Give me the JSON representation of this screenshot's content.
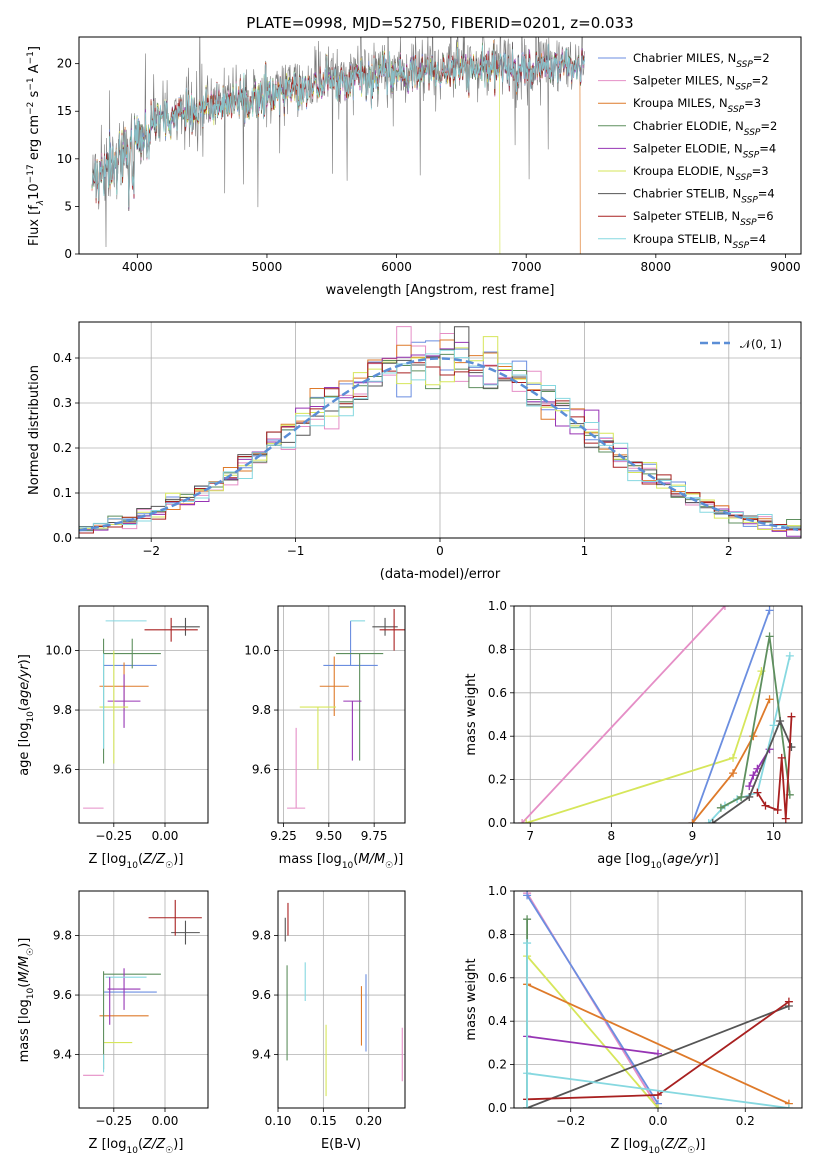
{
  "series_styles": [
    {
      "name": "Chabrier MILES",
      "nssp": "2",
      "color": "#6b8ee0"
    },
    {
      "name": "Salpeter MILES",
      "nssp": "2",
      "color": "#e58ec6"
    },
    {
      "name": "Kroupa MILES",
      "nssp": "3",
      "color": "#de7a2a"
    },
    {
      "name": "Chabrier ELODIE",
      "nssp": "2",
      "color": "#5e8f5e"
    },
    {
      "name": "Salpeter ELODIE",
      "nssp": "4",
      "color": "#9634b4"
    },
    {
      "name": "Kroupa ELODIE",
      "nssp": "3",
      "color": "#d6e65a"
    },
    {
      "name": "Chabrier STELIB",
      "nssp": "4",
      "color": "#555555"
    },
    {
      "name": "Salpeter STELIB",
      "nssp": "6",
      "color": "#a82020"
    },
    {
      "name": "Kroupa STELIB",
      "nssp": "4",
      "color": "#86d8e0"
    }
  ],
  "chart_data": [
    {
      "id": "spectrum",
      "type": "line",
      "title": "PLATE=0998, MJD=52750, FIBERID=0201, z=0.033",
      "xlabel": "wavelength [Angstrom, rest frame]",
      "ylabel_parts": [
        "Flux [f",
        "λ",
        "10",
        "−17",
        " erg cm",
        "−2",
        " s",
        "−1",
        " A",
        "−1",
        "]"
      ],
      "xlim": [
        3550,
        9120
      ],
      "ylim": [
        0,
        22.8
      ],
      "xticks": [
        4000,
        5000,
        6000,
        7000,
        8000,
        9000
      ],
      "yticks": [
        0,
        5,
        10,
        15,
        20
      ],
      "continuum": {
        "x": [
          3650,
          4000,
          4500,
          5000,
          5500,
          6000,
          6500,
          7000,
          7500
        ],
        "y": [
          9.5,
          14.0,
          15.5,
          17.0,
          18.5,
          19.3,
          19.8,
          20.0,
          20.3
        ]
      },
      "observed_range": [
        3650,
        7450
      ],
      "dropouts": [
        {
          "series": 5,
          "x": 6800
        },
        {
          "series": 2,
          "x": 7420
        }
      ],
      "legend": {
        "placement": "top-right"
      }
    },
    {
      "id": "residual-hist",
      "type": "histogram",
      "xlabel": "(data-model)/error",
      "ylabel": "Normed distribution",
      "xlim": [
        -2.5,
        2.5
      ],
      "ylim": [
        0,
        0.48
      ],
      "xticks": [
        -2,
        -1,
        0,
        1,
        2
      ],
      "xtick_labels": [
        "−2",
        "−1",
        "0",
        "1",
        "2"
      ],
      "yticks": [
        0.0,
        0.1,
        0.2,
        0.3,
        0.4
      ],
      "ytick_labels": [
        "0.0",
        "0.1",
        "0.2",
        "0.3",
        "0.4"
      ],
      "bin_width": 0.1,
      "reference": {
        "label": "𝒩(0, 1)",
        "mu": 0,
        "sigma": 1,
        "color": "#5b8ed6"
      },
      "legend": {
        "placement": "top-right"
      }
    },
    {
      "id": "age-vs-z",
      "type": "scatter",
      "xlabel": "Z [log10(Z/Z☉)]",
      "xlabel_parts": [
        "Z [log",
        "10",
        "(Z/Z",
        "☉",
        ")]"
      ],
      "ylabel_parts": [
        "age  [log",
        "10",
        "(age/yr)]"
      ],
      "xlim": [
        -0.42,
        0.21
      ],
      "ylim": [
        9.42,
        10.15
      ],
      "xticks": [
        -0.25,
        0.0
      ],
      "xtick_labels": [
        "−0.25",
        "0.00"
      ],
      "yticks": [
        9.6,
        9.8,
        10.0
      ],
      "yticks_labels": [
        "9.6",
        "9.8",
        "10.0"
      ],
      "points": [
        {
          "s": 0,
          "x": -0.17,
          "y": 9.95,
          "xerr": [
            0.13,
            0.13
          ],
          "yerr": [
            0.0,
            0.0
          ]
        },
        {
          "s": 1,
          "x": -0.35,
          "y": 9.47,
          "xerr": [
            0.05,
            0.05
          ],
          "yerr": [
            0.0,
            0.0
          ]
        },
        {
          "s": 2,
          "x": -0.2,
          "y": 9.88,
          "xerr": [
            0.12,
            0.12
          ],
          "yerr": [
            0.08,
            0.08
          ]
        },
        {
          "s": 3,
          "x": -0.16,
          "y": 9.99,
          "xerr": [
            0.14,
            0.14
          ],
          "yerr": [
            0.05,
            0.05
          ]
        },
        {
          "s": 4,
          "x": -0.2,
          "y": 9.83,
          "xerr": [
            0.08,
            0.08
          ],
          "yerr": [
            0.09,
            0.09
          ]
        },
        {
          "s": 5,
          "x": -0.25,
          "y": 9.81,
          "xerr": [
            0.07,
            0.07
          ],
          "yerr": [
            0.19,
            0.19
          ]
        },
        {
          "s": 6,
          "x": 0.1,
          "y": 10.08,
          "xerr": [
            0.07,
            0.07
          ],
          "yerr": [
            0.03,
            0.03
          ]
        },
        {
          "s": 7,
          "x": 0.03,
          "y": 10.07,
          "xerr": [
            0.13,
            0.13
          ],
          "yerr": [
            0.04,
            0.04
          ]
        },
        {
          "s": 8,
          "x": -0.19,
          "y": 10.1,
          "xerr": [
            0.1,
            0.1
          ],
          "yerr": [
            0.0,
            0.0
          ]
        },
        {
          "s": 3,
          "x": -0.3,
          "y": 9.83,
          "xerr": [
            0.0,
            0.0
          ],
          "yerr": [
            0.21,
            0.21
          ]
        },
        {
          "s": 8,
          "x": -0.3,
          "y": 9.83,
          "xerr": [
            0.0,
            0.0
          ],
          "yerr": [
            0.16,
            0.16
          ]
        }
      ]
    },
    {
      "id": "age-vs-mass",
      "type": "scatter",
      "xlabel_parts": [
        "mass [log",
        "10",
        "(M/M",
        "☉",
        ")]"
      ],
      "xlim": [
        9.22,
        9.92
      ],
      "ylim": [
        9.42,
        10.15
      ],
      "xticks": [
        9.25,
        9.5,
        9.75
      ],
      "xtick_labels": [
        "9.25",
        "9.50",
        "9.75"
      ],
      "yticks": [
        9.6,
        9.8,
        10.0
      ],
      "yticks_labels": [
        "9.6",
        "9.8",
        "10.0"
      ],
      "points": [
        {
          "s": 0,
          "x": 9.62,
          "y": 9.95,
          "xerr": [
            0.15,
            0.15
          ],
          "yerr": [
            0.0,
            0.15
          ]
        },
        {
          "s": 1,
          "x": 9.32,
          "y": 9.47,
          "xerr": [
            0.05,
            0.05
          ],
          "yerr": [
            0.0,
            0.27
          ]
        },
        {
          "s": 2,
          "x": 9.53,
          "y": 9.88,
          "xerr": [
            0.08,
            0.08
          ],
          "yerr": [
            0.1,
            0.1
          ]
        },
        {
          "s": 3,
          "x": 9.67,
          "y": 9.99,
          "xerr": [
            0.13,
            0.13
          ],
          "yerr": [
            0.36,
            0.0
          ]
        },
        {
          "s": 4,
          "x": 9.63,
          "y": 9.83,
          "xerr": [
            0.05,
            0.05
          ],
          "yerr": [
            0.2,
            0.0
          ]
        },
        {
          "s": 5,
          "x": 9.44,
          "y": 9.81,
          "xerr": [
            0.1,
            0.1
          ],
          "yerr": [
            0.21,
            0.0
          ]
        },
        {
          "s": 6,
          "x": 9.81,
          "y": 10.08,
          "xerr": [
            0.07,
            0.07
          ],
          "yerr": [
            0.03,
            0.03
          ]
        },
        {
          "s": 7,
          "x": 9.86,
          "y": 10.07,
          "xerr": [
            0.08,
            0.08
          ],
          "yerr": [
            0.07,
            0.07
          ]
        },
        {
          "s": 8,
          "x": 9.66,
          "y": 10.1,
          "xerr": [
            0.04,
            0.04
          ],
          "yerr": [
            0.0,
            0.0
          ]
        }
      ]
    },
    {
      "id": "weight-vs-age",
      "type": "line",
      "xlabel_parts": [
        "age  [log",
        "10",
        "(age/yr)]"
      ],
      "ylabel": "mass weight",
      "xlim": [
        6.8,
        10.35
      ],
      "ylim": [
        0.0,
        1.0
      ],
      "xticks": [
        7,
        8,
        9,
        10
      ],
      "yticks": [
        0.0,
        0.2,
        0.4,
        0.6,
        0.8,
        1.0
      ],
      "ytick_labels": [
        "0.0",
        "0.2",
        "0.4",
        "0.6",
        "0.8",
        "1.0"
      ],
      "lines": [
        {
          "s": 1,
          "x": [
            6.9,
            9.4
          ],
          "y": [
            0.0,
            1.0
          ]
        },
        {
          "s": 5,
          "x": [
            6.95,
            9.5,
            9.85
          ],
          "y": [
            0.0,
            0.3,
            0.7
          ]
        },
        {
          "s": 0,
          "x": [
            9.0,
            9.95
          ],
          "y": [
            0.0,
            0.98
          ]
        },
        {
          "s": 2,
          "x": [
            9.0,
            9.5,
            9.75,
            9.95
          ],
          "y": [
            0.0,
            0.23,
            0.4,
            0.57
          ]
        },
        {
          "s": 4,
          "x": [
            9.7,
            9.75,
            9.8,
            9.95
          ],
          "y": [
            0.17,
            0.22,
            0.25,
            0.34
          ]
        },
        {
          "s": 8,
          "x": [
            9.2,
            9.4,
            9.55,
            9.8,
            10.0,
            10.2
          ],
          "y": [
            0.0,
            0.08,
            0.11,
            0.14,
            0.45,
            0.77
          ]
        },
        {
          "s": 3,
          "x": [
            9.35,
            9.6,
            9.95,
            10.2
          ],
          "y": [
            0.07,
            0.12,
            0.86,
            0.13
          ]
        },
        {
          "s": 6,
          "x": [
            9.25,
            9.7,
            10.08,
            10.22
          ],
          "y": [
            0.0,
            0.12,
            0.47,
            0.35
          ]
        },
        {
          "s": 7,
          "x": [
            9.8,
            9.9,
            10.05,
            10.1,
            10.15,
            10.22
          ],
          "y": [
            0.14,
            0.08,
            0.06,
            0.3,
            0.02,
            0.49
          ]
        }
      ]
    },
    {
      "id": "mass-vs-z",
      "type": "scatter",
      "xlabel_parts": [
        "Z [log",
        "10",
        "(Z/Z",
        "☉",
        ")]"
      ],
      "ylabel_parts": [
        "mass [log",
        "10",
        "(M/M",
        "☉",
        ")]"
      ],
      "xlim": [
        -0.42,
        0.21
      ],
      "ylim": [
        9.22,
        9.95
      ],
      "xticks": [
        -0.25,
        0.0
      ],
      "xtick_labels": [
        "−0.25",
        "0.00"
      ],
      "yticks": [
        9.4,
        9.6,
        9.8
      ],
      "yticks_labels": [
        "9.4",
        "9.6",
        "9.8"
      ],
      "points": [
        {
          "s": 0,
          "x": -0.17,
          "y": 9.61,
          "xerr": [
            0.13,
            0.13
          ],
          "yerr": [
            0.0,
            0.0
          ]
        },
        {
          "s": 1,
          "x": -0.35,
          "y": 9.33,
          "xerr": [
            0.05,
            0.05
          ],
          "yerr": [
            0.0,
            0.0
          ]
        },
        {
          "s": 2,
          "x": -0.2,
          "y": 9.53,
          "xerr": [
            0.12,
            0.12
          ],
          "yerr": [
            0.0,
            0.0
          ]
        },
        {
          "s": 3,
          "x": -0.16,
          "y": 9.67,
          "xerr": [
            0.14,
            0.14
          ],
          "yerr": [
            0.0,
            0.0
          ]
        },
        {
          "s": 4,
          "x": -0.2,
          "y": 9.62,
          "xerr": [
            0.08,
            0.08
          ],
          "yerr": [
            0.07,
            0.07
          ]
        },
        {
          "s": 5,
          "x": -0.23,
          "y": 9.44,
          "xerr": [
            0.07,
            0.07
          ],
          "yerr": [
            0.0,
            0.0
          ]
        },
        {
          "s": 6,
          "x": 0.1,
          "y": 9.81,
          "xerr": [
            0.07,
            0.07
          ],
          "yerr": [
            0.04,
            0.04
          ]
        },
        {
          "s": 7,
          "x": 0.05,
          "y": 9.86,
          "xerr": [
            0.13,
            0.13
          ],
          "yerr": [
            0.06,
            0.06
          ]
        },
        {
          "s": 8,
          "x": -0.19,
          "y": 9.66,
          "xerr": [
            0.1,
            0.1
          ],
          "yerr": [
            0.0,
            0.0
          ]
        },
        {
          "s": 3,
          "x": -0.3,
          "y": 9.6,
          "xerr": [
            0.0,
            0.0
          ],
          "yerr": [
            0.25,
            0.08
          ]
        },
        {
          "s": 4,
          "x": -0.27,
          "y": 9.6,
          "xerr": [
            0.0,
            0.0
          ],
          "yerr": [
            0.1,
            0.06
          ]
        },
        {
          "s": 8,
          "x": -0.3,
          "y": 9.4,
          "xerr": [
            0.0,
            0.0
          ],
          "yerr": [
            0.06,
            0.0
          ]
        }
      ]
    },
    {
      "id": "mass-vs-ebv",
      "type": "scatter",
      "xlabel": "E(B-V)",
      "xlim": [
        0.1,
        0.24
      ],
      "ylim": [
        9.22,
        9.95
      ],
      "xticks": [
        0.1,
        0.15,
        0.2
      ],
      "xtick_labels": [
        "0.10",
        "0.15",
        "0.20"
      ],
      "yticks": [
        9.4,
        9.6,
        9.8
      ],
      "yticks_labels": [
        "9.4",
        "9.6",
        "9.8"
      ],
      "points": [
        {
          "s": 0,
          "x": 0.197,
          "y": 9.55,
          "xerr": [
            0.0,
            0.0
          ],
          "yerr": [
            0.14,
            0.12
          ]
        },
        {
          "s": 1,
          "x": 0.237,
          "y": 9.41,
          "xerr": [
            0.0,
            0.0
          ],
          "yerr": [
            0.1,
            0.08
          ]
        },
        {
          "s": 2,
          "x": 0.192,
          "y": 9.53,
          "xerr": [
            0.0,
            0.0
          ],
          "yerr": [
            0.1,
            0.1
          ]
        },
        {
          "s": 3,
          "x": 0.11,
          "y": 9.56,
          "xerr": [
            0.0,
            0.0
          ],
          "yerr": [
            0.18,
            0.14
          ]
        },
        {
          "s": 6,
          "x": 0.108,
          "y": 9.81,
          "xerr": [
            0.0,
            0.0
          ],
          "yerr": [
            0.03,
            0.05
          ]
        },
        {
          "s": 7,
          "x": 0.111,
          "y": 9.85,
          "xerr": [
            0.0,
            0.0
          ],
          "yerr": [
            0.05,
            0.06
          ]
        },
        {
          "s": 5,
          "x": 0.153,
          "y": 9.37,
          "xerr": [
            0.0,
            0.0
          ],
          "yerr": [
            0.11,
            0.13
          ]
        },
        {
          "s": 8,
          "x": 0.13,
          "y": 9.64,
          "xerr": [
            0.0,
            0.0
          ],
          "yerr": [
            0.06,
            0.07
          ]
        }
      ]
    },
    {
      "id": "weight-vs-z",
      "type": "line",
      "xlabel_parts": [
        "Z [log",
        "10",
        "(Z/Z",
        "☉",
        ")]"
      ],
      "ylabel": "mass weight",
      "xlim": [
        -0.33,
        0.33
      ],
      "ylim": [
        0.0,
        1.0
      ],
      "xticks": [
        -0.2,
        0.0,
        0.2
      ],
      "xtick_labels": [
        "−0.2",
        "0.0",
        "0.2"
      ],
      "yticks": [
        0.0,
        0.2,
        0.4,
        0.6,
        0.8,
        1.0
      ],
      "ytick_labels": [
        "0.0",
        "0.2",
        "0.4",
        "0.6",
        "0.8",
        "1.0"
      ],
      "lines": [
        {
          "s": 1,
          "x": [
            -0.3,
            0.0
          ],
          "y": [
            0.99,
            0.0
          ]
        },
        {
          "s": 0,
          "x": [
            -0.3,
            0.0
          ],
          "y": [
            0.98,
            0.02
          ]
        },
        {
          "s": 5,
          "x": [
            -0.3,
            0.0
          ],
          "y": [
            0.7,
            0.0
          ]
        },
        {
          "s": 2,
          "x": [
            -0.3,
            0.3
          ],
          "y": [
            0.57,
            0.02
          ]
        },
        {
          "s": 4,
          "x": [
            -0.3,
            0.0
          ],
          "y": [
            0.33,
            0.25
          ]
        },
        {
          "s": 6,
          "x": [
            -0.3,
            0.3
          ],
          "y": [
            0.0,
            0.47
          ]
        },
        {
          "s": 7,
          "x": [
            -0.3,
            0.0,
            0.3
          ],
          "y": [
            0.04,
            0.06,
            0.49
          ]
        },
        {
          "s": 8,
          "x": [
            -0.3,
            0.3
          ],
          "y": [
            0.16,
            0.0
          ]
        },
        {
          "s": 3,
          "x": [
            -0.3,
            -0.3
          ],
          "y": [
            0.0,
            0.87
          ]
        },
        {
          "s": 8,
          "x": [
            -0.3,
            -0.3
          ],
          "y": [
            0.0,
            0.76
          ]
        }
      ]
    }
  ]
}
